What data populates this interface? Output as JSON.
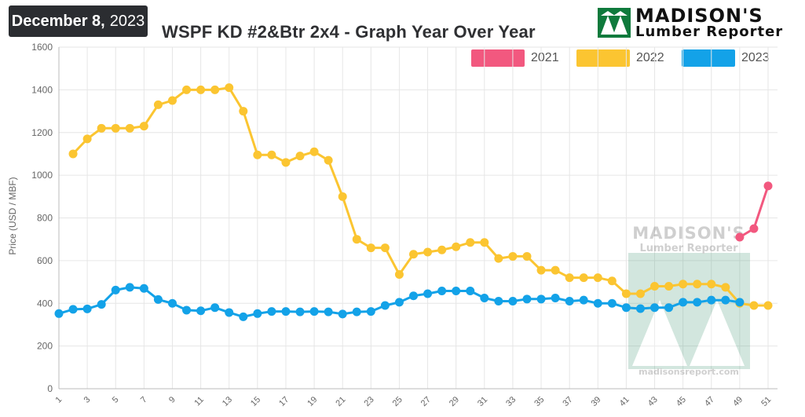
{
  "header": {
    "date_bold": "December 8,",
    "date_year": "2023",
    "title": "WSPF KD #2&Btr 2x4 - Graph Year Over Year",
    "logo_top": "MADISON'S",
    "logo_bottom": "Lumber Reporter"
  },
  "watermark": {
    "top": "MADISON'S",
    "bottom": "Lumber Reporter",
    "url": "madisonsreport.com"
  },
  "colors": {
    "2021": "#f2587f",
    "2022": "#fbc531",
    "2023": "#13a2e8",
    "grid": "#e6e6e6",
    "logo_green": "#0f7a3c"
  },
  "chart_data": {
    "type": "line",
    "title": "WSPF KD #2&Btr 2x4 - Graph Year Over Year",
    "xlabel": "",
    "ylabel": "Price (USD / MBF)",
    "ylim": [
      0,
      1600
    ],
    "yticks": [
      0,
      200,
      400,
      600,
      800,
      1000,
      1200,
      1400,
      1600
    ],
    "xticks": [
      1,
      3,
      5,
      7,
      9,
      11,
      13,
      15,
      17,
      19,
      21,
      23,
      25,
      27,
      29,
      31,
      33,
      35,
      37,
      39,
      41,
      43,
      45,
      47,
      49,
      51
    ],
    "xlim": [
      1,
      51
    ],
    "grid": true,
    "legend_position": "top-right",
    "series": [
      {
        "name": "2021",
        "x": [
          49,
          50,
          51
        ],
        "values": [
          710,
          750,
          950
        ]
      },
      {
        "name": "2022",
        "x": [
          2,
          3,
          4,
          5,
          6,
          7,
          8,
          9,
          10,
          11,
          12,
          13,
          14,
          15,
          16,
          17,
          18,
          19,
          20,
          21,
          22,
          23,
          24,
          25,
          26,
          27,
          28,
          29,
          30,
          31,
          32,
          33,
          34,
          35,
          36,
          37,
          38,
          39,
          40,
          41,
          42,
          43,
          44,
          45,
          46,
          47,
          48,
          49,
          50,
          51
        ],
        "values": [
          1100,
          1170,
          1220,
          1220,
          1220,
          1230,
          1330,
          1350,
          1400,
          1400,
          1400,
          1410,
          1300,
          1095,
          1095,
          1060,
          1090,
          1110,
          1070,
          900,
          700,
          660,
          660,
          535,
          630,
          640,
          650,
          665,
          685,
          685,
          610,
          620,
          620,
          555,
          555,
          520,
          520,
          520,
          505,
          445,
          445,
          480,
          480,
          490,
          490,
          490,
          475,
          400,
          390,
          390
        ]
      },
      {
        "name": "2023",
        "x": [
          1,
          2,
          3,
          4,
          5,
          6,
          7,
          8,
          9,
          10,
          11,
          12,
          13,
          14,
          15,
          16,
          17,
          18,
          19,
          20,
          21,
          22,
          23,
          24,
          25,
          26,
          27,
          28,
          29,
          30,
          31,
          32,
          33,
          34,
          35,
          36,
          37,
          38,
          39,
          40,
          41,
          42,
          43,
          44,
          45,
          46,
          47,
          48,
          49
        ],
        "values": [
          352,
          372,
          374,
          395,
          462,
          475,
          470,
          418,
          400,
          368,
          365,
          380,
          357,
          337,
          352,
          362,
          362,
          360,
          362,
          360,
          350,
          360,
          362,
          390,
          405,
          435,
          445,
          458,
          458,
          458,
          425,
          410,
          410,
          420,
          420,
          425,
          410,
          415,
          400,
          400,
          380,
          375,
          380,
          380,
          405,
          405,
          415,
          415,
          405
        ]
      }
    ]
  }
}
